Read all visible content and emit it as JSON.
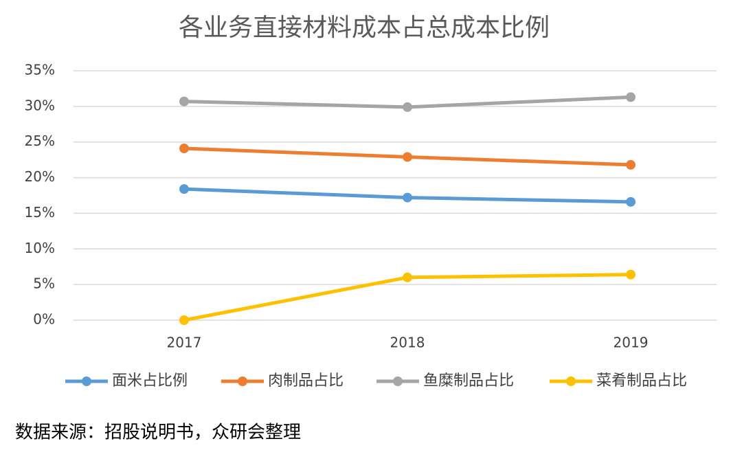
{
  "chart_data": {
    "type": "line",
    "title": "各业务直接材料成本占总成本比例",
    "categories": [
      "2017",
      "2018",
      "2019"
    ],
    "series": [
      {
        "name": "面米占比例",
        "color": "#5b9bd5",
        "values": [
          18.4,
          17.2,
          16.6
        ]
      },
      {
        "name": "肉制品占比",
        "color": "#ed7d31",
        "values": [
          24.1,
          22.9,
          21.8
        ]
      },
      {
        "name": "鱼糜制品占比",
        "color": "#a5a5a5",
        "values": [
          30.7,
          29.9,
          31.3
        ]
      },
      {
        "name": "菜肴制品占比",
        "color": "#ffc000",
        "values": [
          0,
          6.0,
          6.4
        ]
      }
    ],
    "ylim": [
      0,
      35
    ],
    "yticks": [
      {
        "value": 0,
        "label": "0%"
      },
      {
        "value": 5,
        "label": "5%"
      },
      {
        "value": 10,
        "label": "10%"
      },
      {
        "value": 15,
        "label": "15%"
      },
      {
        "value": 20,
        "label": "20%"
      },
      {
        "value": 25,
        "label": "25%"
      },
      {
        "value": 30,
        "label": "30%"
      },
      {
        "value": 35,
        "label": "35%"
      }
    ],
    "grid": true,
    "legend": "bottom",
    "source": "数据来源：招股说明书，众研会整理"
  }
}
